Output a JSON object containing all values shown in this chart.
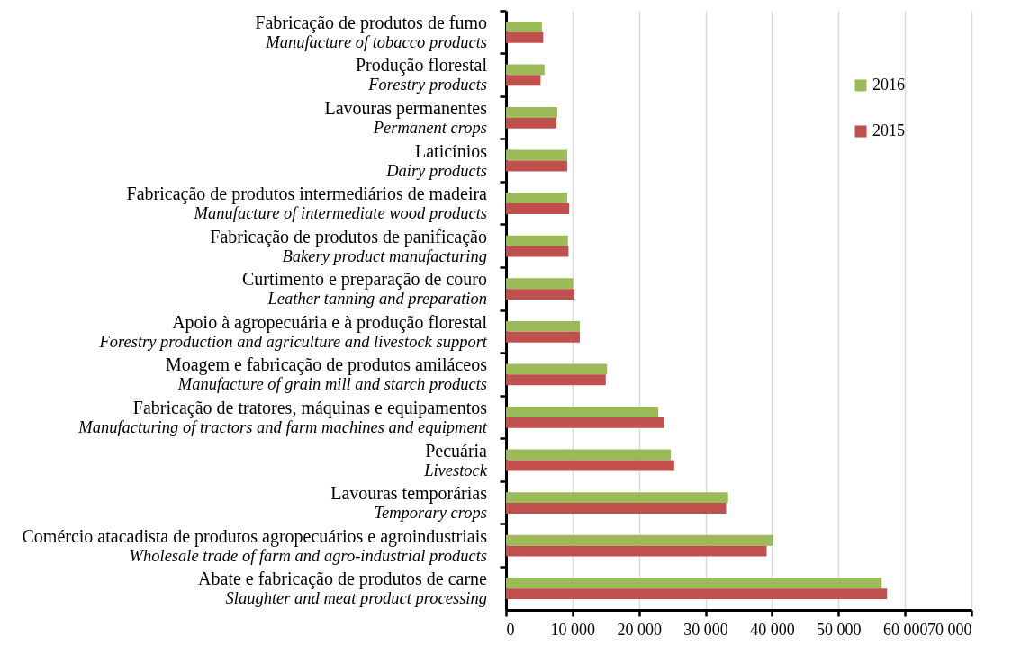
{
  "chart_data": {
    "type": "bar",
    "orientation": "horizontal",
    "categories": [
      "Fabricação de produtos de fumo\nManufacture of tobacco products",
      "Produção florestal\nForestry products",
      "Lavouras permanentes\nPermanent crops",
      "Laticínios\nDairy products",
      "Fabricação de produtos intermediários de madeira\nManufacture of intermediate wood products",
      "Fabricação de produtos de panificação\nBakery product manufacturing",
      "Curtimento e preparação de couro\nLeather tanning and preparation",
      "Apoio à agropecuária e à produção florestal\nForestry production and agriculture and livestock support",
      "Moagem e fabricação de produtos amiláceos\nManufacture of grain mill and starch products",
      "Fabricação de tratores, máquinas e equipamentos\nManufacturing of tractors and farm machines and equipment",
      "Pecuária\nLivestock",
      "Lavouras temporárias\nTemporary crops",
      "Comércio atacadista de produtos agropecuários e agroindustriais\nWholesale trade of farm and agro-industrial products",
      "Abate e fabricação de produtos de carne\nSlaughter and meat product processing"
    ],
    "series": [
      {
        "name": "2016",
        "color": "#9bbb59",
        "values": [
          5400,
          5800,
          7700,
          9200,
          9200,
          9300,
          10100,
          11100,
          15200,
          22900,
          24800,
          33400,
          40200,
          56500
        ]
      },
      {
        "name": "2015",
        "color": "#c0504d",
        "values": [
          5600,
          5200,
          7600,
          9200,
          9500,
          9400,
          10300,
          11100,
          15000,
          23800,
          25300,
          33100,
          39200,
          57300
        ]
      }
    ],
    "xlim": [
      0,
      70000
    ],
    "xticks": [
      0,
      {
        "value": 10000,
        "label": "10 000"
      },
      {
        "value": 20000,
        "label": "20 000"
      },
      {
        "value": 30000,
        "label": "30 000"
      },
      {
        "value": 40000,
        "label": "40 000"
      },
      {
        "value": 50000,
        "label": "50 000"
      },
      {
        "value": 60000,
        "label": "60 000"
      },
      {
        "value": 70000,
        "label": "70 000"
      }
    ],
    "grid": "x",
    "legend": "top right"
  }
}
